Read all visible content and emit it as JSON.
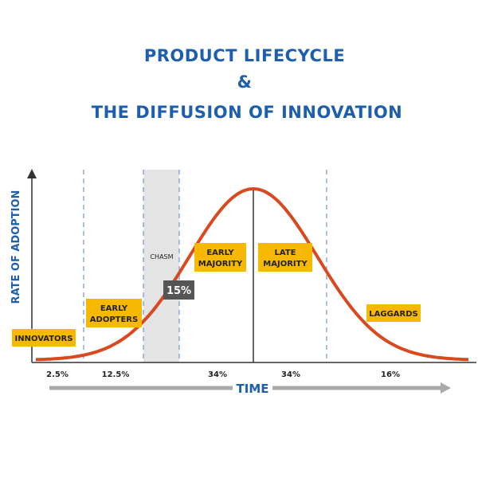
{
  "header": {
    "line1": "PRODUCT LIFECYCLE",
    "line2": "&",
    "line3": "THE DIFFUSION OF INNOVATION"
  },
  "y_axis_label": "RATE OF ADOPTION",
  "x_axis_label": "TIME",
  "chasm": {
    "label": "CHASM",
    "badge": "15%"
  },
  "segments": [
    {
      "label": [
        "INNOVATORS"
      ],
      "share": "2.5%"
    },
    {
      "label": [
        "EARLY",
        "ADOPTERS"
      ],
      "share": "12.5%"
    },
    {
      "label": [
        "EARLY",
        "MAJORITY"
      ],
      "share": "34%"
    },
    {
      "label": [
        "LATE",
        "MAJORITY"
      ],
      "share": "34%"
    },
    {
      "label": [
        "LAGGARDS"
      ],
      "share": "16%"
    }
  ]
}
